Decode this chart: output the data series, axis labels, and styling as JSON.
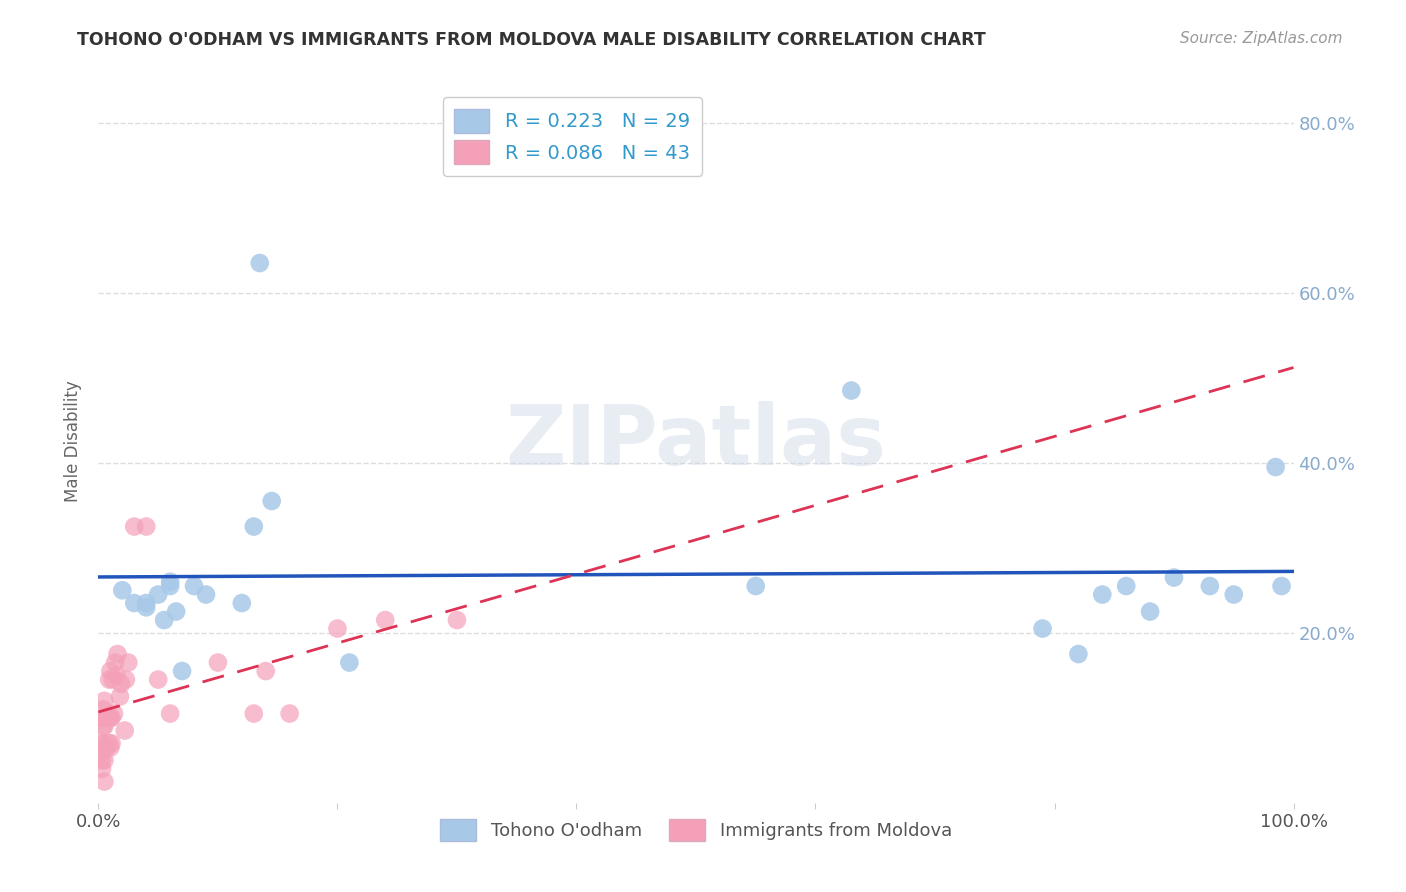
{
  "title": "TOHONO O'ODHAM VS IMMIGRANTS FROM MOLDOVA MALE DISABILITY CORRELATION CHART",
  "source": "Source: ZipAtlas.com",
  "ylabel": "Male Disability",
  "series1_label": "Tohono O'odham",
  "series2_label": "Immigrants from Moldova",
  "series1_R": "0.223",
  "series1_N": "29",
  "series2_R": "0.086",
  "series2_N": "43",
  "series1_color": "#a8c8e8",
  "series2_color": "#f4a0b8",
  "series1_line_color": "#2255bb",
  "series2_line_color": "#dd3355",
  "xlim": [
    0,
    1.0
  ],
  "ylim": [
    0,
    0.85
  ],
  "blue_x": [
    0.02,
    0.03,
    0.04,
    0.05,
    0.055,
    0.06,
    0.065,
    0.07,
    0.08,
    0.13,
    0.135,
    0.145,
    0.21,
    0.55,
    0.63,
    0.79,
    0.82,
    0.84,
    0.86,
    0.88,
    0.9,
    0.93,
    0.95,
    0.985,
    0.99,
    0.04,
    0.06,
    0.09,
    0.12
  ],
  "blue_y": [
    0.25,
    0.235,
    0.235,
    0.245,
    0.215,
    0.255,
    0.225,
    0.155,
    0.255,
    0.325,
    0.635,
    0.355,
    0.165,
    0.255,
    0.485,
    0.205,
    0.175,
    0.245,
    0.255,
    0.225,
    0.265,
    0.255,
    0.245,
    0.395,
    0.255,
    0.23,
    0.26,
    0.245,
    0.235
  ],
  "pink_x": [
    0.003,
    0.003,
    0.003,
    0.003,
    0.004,
    0.004,
    0.004,
    0.004,
    0.005,
    0.005,
    0.005,
    0.005,
    0.006,
    0.007,
    0.008,
    0.009,
    0.009,
    0.01,
    0.01,
    0.01,
    0.011,
    0.011,
    0.012,
    0.013,
    0.014,
    0.015,
    0.016,
    0.018,
    0.019,
    0.022,
    0.023,
    0.025,
    0.03,
    0.04,
    0.05,
    0.06,
    0.1,
    0.13,
    0.14,
    0.16,
    0.2,
    0.24,
    0.3
  ],
  "pink_y": [
    0.04,
    0.05,
    0.06,
    0.07,
    0.07,
    0.09,
    0.1,
    0.11,
    0.025,
    0.05,
    0.09,
    0.12,
    0.1,
    0.065,
    0.1,
    0.145,
    0.07,
    0.065,
    0.1,
    0.155,
    0.07,
    0.1,
    0.145,
    0.105,
    0.165,
    0.15,
    0.175,
    0.125,
    0.14,
    0.085,
    0.145,
    0.165,
    0.325,
    0.325,
    0.145,
    0.105,
    0.165,
    0.105,
    0.155,
    0.105,
    0.205,
    0.215,
    0.215
  ],
  "watermark_text": "ZIPatlas",
  "background_color": "#ffffff",
  "grid_color": "#dddddd",
  "tick_color": "#88aacc",
  "title_color": "#333333",
  "ylabel_color": "#666666",
  "source_color": "#999999"
}
